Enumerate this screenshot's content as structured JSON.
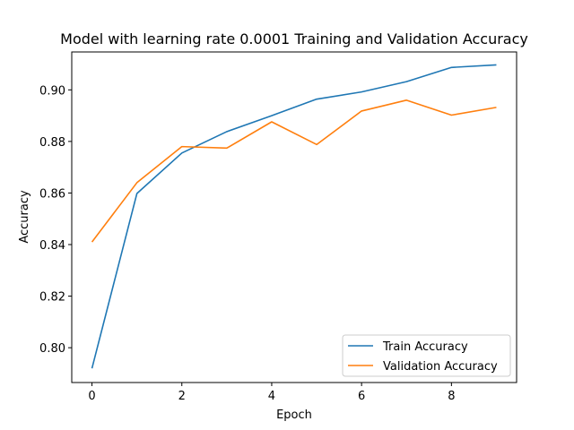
{
  "chart_data": {
    "type": "line",
    "title": "Model with learning rate 0.0001 Training and Validation Accuracy",
    "xlabel": "Epoch",
    "ylabel": "Accuracy",
    "x": [
      0,
      1,
      2,
      3,
      4,
      5,
      6,
      7,
      8,
      9
    ],
    "xlim": [
      -0.45,
      9.45
    ],
    "ylim": [
      0.7865,
      0.9147
    ],
    "xticks": [
      0,
      2,
      4,
      6,
      8
    ],
    "yticks": [
      0.8,
      0.82,
      0.84,
      0.86,
      0.88,
      0.9
    ],
    "xtick_labels": [
      "0",
      "2",
      "4",
      "6",
      "8"
    ],
    "ytick_labels": [
      "0.80",
      "0.82",
      "0.84",
      "0.86",
      "0.88",
      "0.90"
    ],
    "grid": false,
    "legend_position": "lower-right",
    "series": [
      {
        "name": "Train Accuracy",
        "color": "#1f77b4",
        "values": [
          0.792,
          0.8598,
          0.8755,
          0.8838,
          0.89,
          0.8964,
          0.8992,
          0.9032,
          0.9087,
          0.9097
        ]
      },
      {
        "name": "Validation Accuracy",
        "color": "#ff7f0e",
        "values": [
          0.841,
          0.864,
          0.878,
          0.8774,
          0.8876,
          0.8788,
          0.8918,
          0.896,
          0.8902,
          0.8932
        ]
      }
    ]
  }
}
